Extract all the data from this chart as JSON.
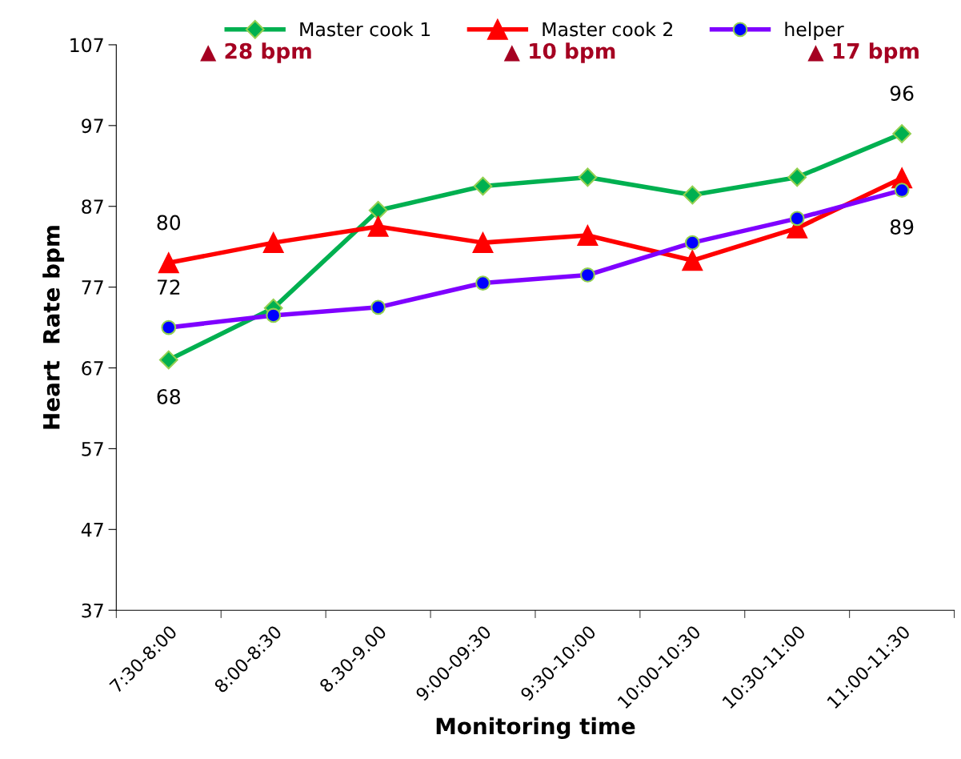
{
  "chart_data": {
    "type": "line",
    "xlabel": "Monitoring time",
    "ylabel": "Heart  Rate bpm",
    "categories": [
      "7:30-8:00",
      "8:00-8:30",
      "8.30-9.00",
      "9:00-09:30",
      "9:30-10:00",
      "10:00-10:30",
      "10:30-11:00",
      "11:00-11:30"
    ],
    "ylim": [
      37,
      107
    ],
    "yticks": [
      37,
      47,
      57,
      67,
      77,
      87,
      97,
      107
    ],
    "grid": false,
    "legend": "top",
    "line_style": "solid",
    "series": [
      {
        "name": "Master cook 1",
        "color": "#00b050",
        "marker": "diamond",
        "values": [
          68,
          74.4,
          86.5,
          89.5,
          90.6,
          88.4,
          90.6,
          96
        ]
      },
      {
        "name": "Master cook 2",
        "color": "#ff0000",
        "marker": "triangle",
        "values": [
          80,
          82.5,
          84.5,
          82.5,
          83.4,
          80.3,
          84.3,
          90.5
        ]
      },
      {
        "name": "helper",
        "color": "#7f00ff",
        "marker": "circle",
        "colors": [
          "#0000ff",
          "#0000ff",
          "#0000ff",
          "#0000ff",
          "#0000ff",
          "#0000ff",
          "#0000ff",
          "#0000ff"
        ],
        "values": [
          72,
          73.5,
          74.5,
          77.5,
          78.5,
          82.5,
          85.5,
          89
        ]
      }
    ],
    "annotations": [
      {
        "text": "80",
        "x": "7:30-8:00",
        "y": 80
      },
      {
        "text": "72",
        "x": "7:30-8:00",
        "y": 72
      },
      {
        "text": "68",
        "x": "7:30-8:00",
        "y": 68
      },
      {
        "text": "96",
        "x": "11:00-11:30",
        "y": 96
      },
      {
        "text": "89",
        "x": "11:00-11:30",
        "y": 89
      },
      "▲ 28 bpm",
      "▲ 10 bpm",
      "▲ 17 bpm"
    ]
  }
}
